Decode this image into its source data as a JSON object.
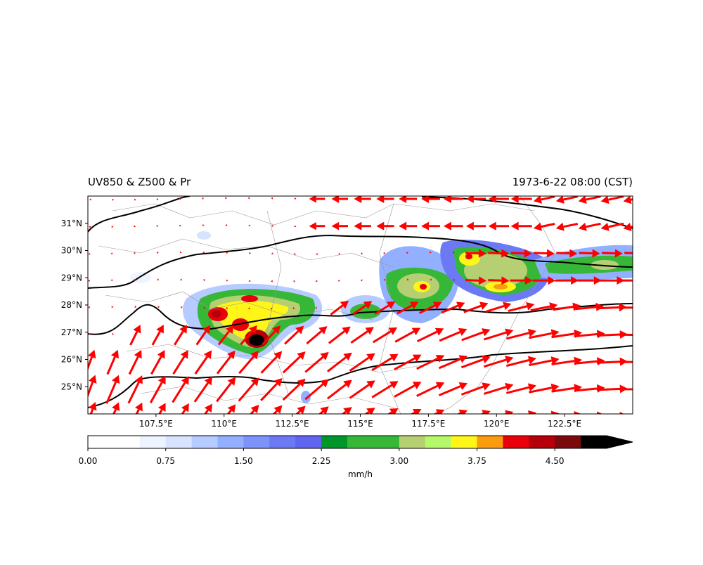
{
  "header": {
    "left_title": "UV850 & Z500 & Pr",
    "right_title": "1973-6-22 08:00 (CST)"
  },
  "map": {
    "xlim": [
      105,
      125
    ],
    "ylim": [
      24,
      32
    ],
    "xticks": [
      {
        "value": 107.5,
        "label": "107.5°E"
      },
      {
        "value": 110,
        "label": "110°E"
      },
      {
        "value": 112.5,
        "label": "112.5°E"
      },
      {
        "value": 115,
        "label": "115°E"
      },
      {
        "value": 117.5,
        "label": "117.5°E"
      },
      {
        "value": 120,
        "label": "120°E"
      },
      {
        "value": 122.5,
        "label": "122.5°E"
      }
    ],
    "yticks": [
      {
        "value": 25,
        "label": "25°N"
      },
      {
        "value": 26,
        "label": "26°N"
      },
      {
        "value": 27,
        "label": "27°N"
      },
      {
        "value": 28,
        "label": "28°N"
      },
      {
        "value": 29,
        "label": "29°N"
      },
      {
        "value": 30,
        "label": "30°N"
      },
      {
        "value": 31,
        "label": "31°N"
      }
    ]
  },
  "colorbar": {
    "range": [
      0,
      5
    ],
    "colors": [
      "#ffffff",
      "#ffffff",
      "#eef4ff",
      "#d7e3ff",
      "#b6cbff",
      "#92b0ff",
      "#7d93fb",
      "#6b79f5",
      "#5f65ee",
      "#00962a",
      "#37b737",
      "#37b737",
      "#b6cf72",
      "#b5f96a",
      "#fff619",
      "#fb9c10",
      "#e8000b",
      "#b5000a",
      "#7b0a0d",
      "#000000"
    ],
    "ticks": [
      {
        "value": 0,
        "label": "0.00"
      },
      {
        "value": 0.75,
        "label": "0.75"
      },
      {
        "value": 1.5,
        "label": "1.50"
      },
      {
        "value": 2.25,
        "label": "2.25"
      },
      {
        "value": 3,
        "label": "3.00"
      },
      {
        "value": 3.75,
        "label": "3.75"
      },
      {
        "value": 4.5,
        "label": "4.50"
      }
    ],
    "label": "mm/h"
  }
}
